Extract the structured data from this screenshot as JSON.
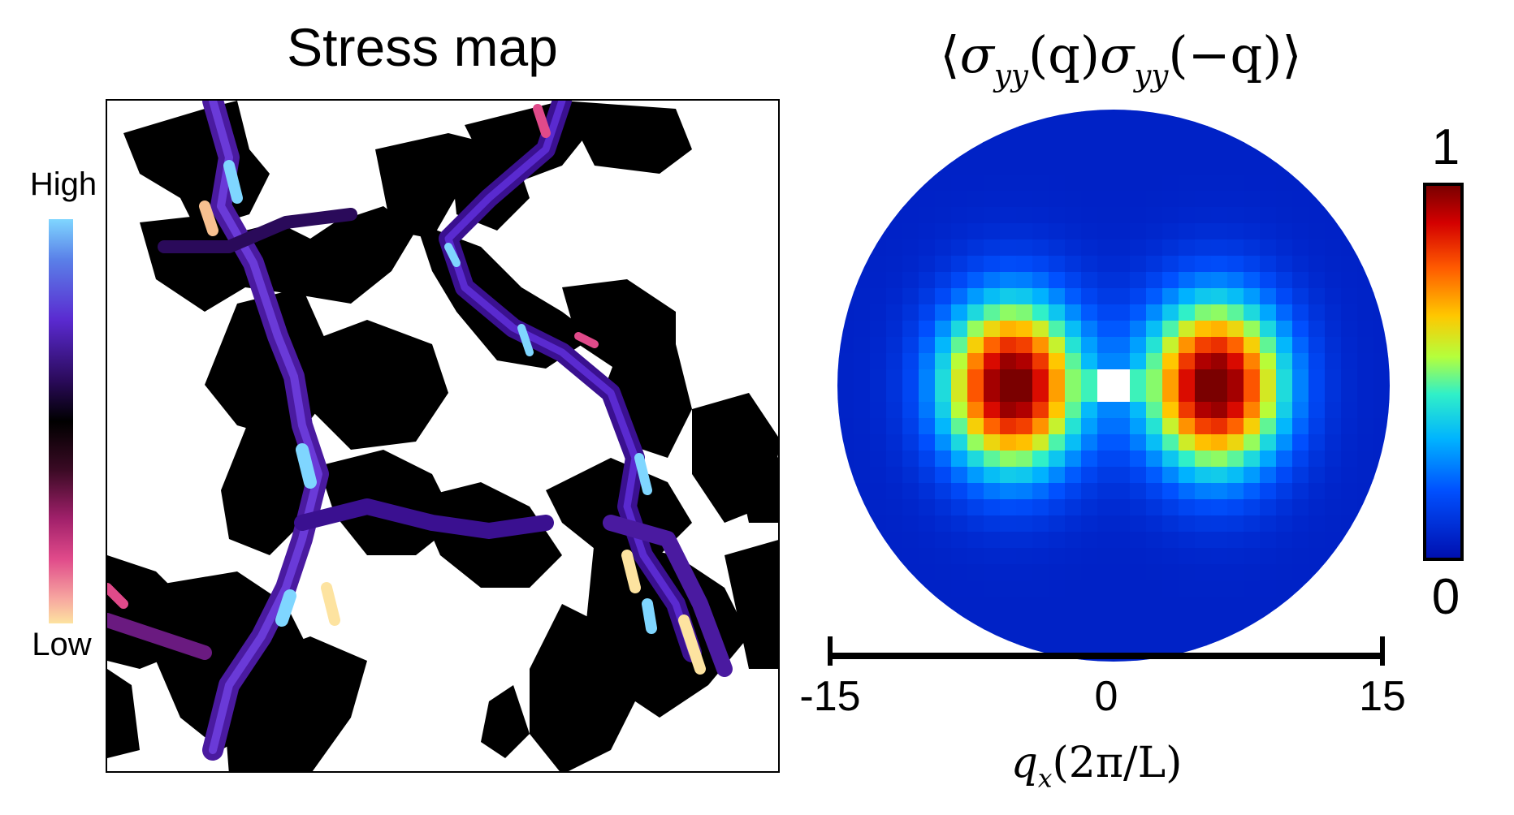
{
  "left_panel": {
    "title": "Stress map",
    "colorbar": {
      "high_label": "High",
      "low_label": "Low",
      "colors": [
        "#7fd6ff",
        "#5a2ad0",
        "#000000",
        "#a0206a",
        "#fde3a0"
      ]
    }
  },
  "right_panel": {
    "title_parts": {
      "open": "⟨",
      "sigma1": "σ",
      "sub1": "yy",
      "arg1": "(q)",
      "sigma2": "σ",
      "sub2": "yy",
      "arg2": "(−q)",
      "close": "⟩"
    },
    "colorbar": {
      "max_label": "1",
      "min_label": "0"
    },
    "xlabel_parts": {
      "q": "q",
      "sub": "x",
      "unit": "(2π/L)"
    }
  },
  "chart_data": [
    {
      "type": "heatmap",
      "title": "Stress map",
      "colorbar_labels": [
        "High",
        "Low"
      ],
      "xlabel": "",
      "ylabel": ""
    },
    {
      "type": "heatmap",
      "title": "⟨σyy(q)σyy(−q)⟩",
      "xlabel": "qx(2π/L)",
      "x_ticks": [
        -15,
        0,
        15
      ],
      "xlim": [
        -15,
        15
      ],
      "colorbar_range": [
        0,
        1
      ],
      "colorbar_ticks": [
        0,
        1
      ],
      "domain": "disk of radius 15",
      "peaks": [
        {
          "qx": -5.5,
          "qy": 0,
          "value": 1.0
        },
        {
          "qx": 5.5,
          "qy": 0,
          "value": 1.0
        }
      ],
      "background_value": 0.05
    }
  ]
}
